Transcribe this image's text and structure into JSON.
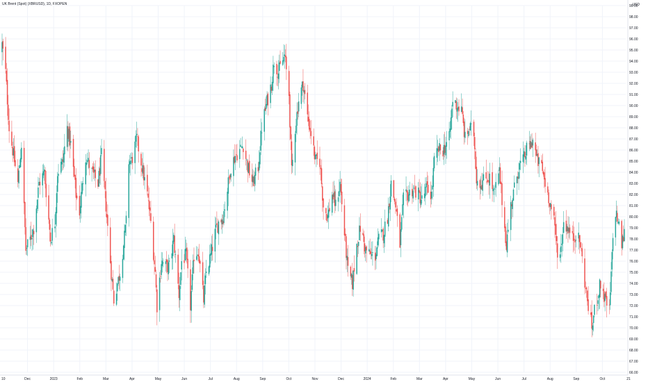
{
  "title": "UK Brent (Spot) (XBRUSD), 1D, FXOPEN",
  "unit": "USD",
  "colors": {
    "up": "#26a69a",
    "down": "#ef5350",
    "grid": "#f0f3fa",
    "text": "#131722",
    "axis": "#e0e3eb"
  },
  "chart_data": {
    "type": "candlestick",
    "title": "UK Brent (Spot) (XBRUSD), 1D, FXOPEN",
    "ylabel": "USD",
    "ylim": [
      66,
      99
    ],
    "yticks": [
      "66.00",
      "67.00",
      "68.00",
      "69.00",
      "70.00",
      "71.00",
      "72.00",
      "73.00",
      "74.00",
      "75.00",
      "76.00",
      "77.00",
      "78.00",
      "79.00",
      "80.00",
      "81.00",
      "82.00",
      "83.00",
      "84.00",
      "85.00",
      "86.00",
      "87.00",
      "88.00",
      "89.00",
      "90.00",
      "91.00",
      "92.00",
      "93.00",
      "94.00",
      "95.00",
      "96.00",
      "97.00",
      "98.00",
      "99.00"
    ],
    "xticks": [
      "10",
      "Dec",
      "2023",
      "Feb",
      "Mar",
      "Apr",
      "May",
      "Jun",
      "Jul",
      "Aug",
      "Sep",
      "Oct",
      "Nov",
      "Dec",
      "2024",
      "Feb",
      "Mar",
      "Apr",
      "May",
      "Jun",
      "Jul",
      "Aug",
      "Sep",
      "Oct",
      "21"
    ],
    "close_path": [
      [
        "2022-11-10",
        95.5
      ],
      [
        "2022-11-14",
        93.0
      ],
      [
        "2022-11-18",
        88.0
      ],
      [
        "2022-11-24",
        85.0
      ],
      [
        "2022-11-28",
        83.0
      ],
      [
        "2022-12-02",
        86.5
      ],
      [
        "2022-12-07",
        77.0
      ],
      [
        "2022-12-12",
        78.0
      ],
      [
        "2022-12-16",
        79.0
      ],
      [
        "2022-12-22",
        83.0
      ],
      [
        "2022-12-28",
        84.0
      ],
      [
        "2023-01-04",
        78.0
      ],
      [
        "2023-01-09",
        79.5
      ],
      [
        "2023-01-12",
        84.0
      ],
      [
        "2023-01-18",
        85.0
      ],
      [
        "2023-01-23",
        88.0
      ],
      [
        "2023-01-27",
        86.5
      ],
      [
        "2023-02-02",
        82.0
      ],
      [
        "2023-02-06",
        80.5
      ],
      [
        "2023-02-13",
        85.5
      ],
      [
        "2023-02-20",
        84.0
      ],
      [
        "2023-02-27",
        83.0
      ],
      [
        "2023-03-03",
        85.5
      ],
      [
        "2023-03-08",
        81.0
      ],
      [
        "2023-03-14",
        75.0
      ],
      [
        "2023-03-17",
        72.5
      ],
      [
        "2023-03-21",
        74.0
      ],
      [
        "2023-03-24",
        75.0
      ],
      [
        "2023-03-28",
        77.5
      ],
      [
        "2023-03-31",
        79.5
      ],
      [
        "2023-04-03",
        85.0
      ],
      [
        "2023-04-06",
        85.0
      ],
      [
        "2023-04-12",
        87.0
      ],
      [
        "2023-04-18",
        84.5
      ],
      [
        "2023-04-24",
        82.0
      ],
      [
        "2023-04-28",
        79.5
      ],
      [
        "2023-05-03",
        75.0
      ],
      [
        "2023-05-05",
        72.0
      ],
      [
        "2023-05-10",
        76.0
      ],
      [
        "2023-05-15",
        75.5
      ],
      [
        "2023-05-19",
        75.5
      ],
      [
        "2023-05-24",
        78.0
      ],
      [
        "2023-05-30",
        73.0
      ],
      [
        "2023-06-02",
        76.0
      ],
      [
        "2023-06-07",
        76.5
      ],
      [
        "2023-06-12",
        72.0
      ],
      [
        "2023-06-16",
        76.5
      ],
      [
        "2023-06-21",
        77.0
      ],
      [
        "2023-06-27",
        72.5
      ],
      [
        "2023-06-30",
        75.0
      ],
      [
        "2023-07-05",
        76.5
      ],
      [
        "2023-07-10",
        78.5
      ],
      [
        "2023-07-14",
        79.5
      ],
      [
        "2023-07-19",
        80.0
      ],
      [
        "2023-07-24",
        82.5
      ],
      [
        "2023-07-28",
        84.5
      ],
      [
        "2023-08-02",
        85.5
      ],
      [
        "2023-08-07",
        86.0
      ],
      [
        "2023-08-11",
        86.5
      ],
      [
        "2023-08-16",
        84.5
      ],
      [
        "2023-08-22",
        83.0
      ],
      [
        "2023-08-28",
        84.5
      ],
      [
        "2023-09-01",
        88.0
      ],
      [
        "2023-09-06",
        90.0
      ],
      [
        "2023-09-12",
        92.0
      ],
      [
        "2023-09-15",
        94.0
      ],
      [
        "2023-09-20",
        93.0
      ],
      [
        "2023-09-27",
        94.5
      ],
      [
        "2023-10-02",
        91.0
      ],
      [
        "2023-10-05",
        84.0
      ],
      [
        "2023-10-09",
        88.0
      ],
      [
        "2023-10-13",
        90.5
      ],
      [
        "2023-10-18",
        92.0
      ],
      [
        "2023-10-23",
        89.0
      ],
      [
        "2023-10-27",
        87.5
      ],
      [
        "2023-11-01",
        85.0
      ],
      [
        "2023-11-06",
        85.0
      ],
      [
        "2023-11-10",
        81.0
      ],
      [
        "2023-11-15",
        80.0
      ],
      [
        "2023-11-20",
        82.0
      ],
      [
        "2023-11-24",
        81.0
      ],
      [
        "2023-11-29",
        83.0
      ],
      [
        "2023-12-04",
        78.5
      ],
      [
        "2023-12-08",
        75.0
      ],
      [
        "2023-12-13",
        74.0
      ],
      [
        "2023-12-18",
        77.5
      ],
      [
        "2023-12-22",
        79.0
      ],
      [
        "2023-12-28",
        77.0
      ],
      [
        "2024-01-03",
        76.5
      ],
      [
        "2024-01-08",
        76.5
      ],
      [
        "2024-01-12",
        78.0
      ],
      [
        "2024-01-17",
        78.5
      ],
      [
        "2024-01-22",
        80.0
      ],
      [
        "2024-01-26",
        83.0
      ],
      [
        "2024-01-31",
        81.0
      ],
      [
        "2024-02-05",
        77.5
      ],
      [
        "2024-02-09",
        81.5
      ],
      [
        "2024-02-14",
        82.0
      ],
      [
        "2024-02-20",
        82.5
      ],
      [
        "2024-02-26",
        82.0
      ],
      [
        "2024-03-01",
        81.5
      ],
      [
        "2024-03-06",
        82.5
      ],
      [
        "2024-03-12",
        82.0
      ],
      [
        "2024-03-15",
        85.0
      ],
      [
        "2024-03-20",
        86.0
      ],
      [
        "2024-03-25",
        86.0
      ],
      [
        "2024-04-01",
        87.0
      ],
      [
        "2024-04-05",
        90.5
      ],
      [
        "2024-04-10",
        90.0
      ],
      [
        "2024-04-15",
        89.5
      ],
      [
        "2024-04-19",
        87.0
      ],
      [
        "2024-04-24",
        88.0
      ],
      [
        "2024-04-29",
        87.5
      ],
      [
        "2024-05-02",
        83.5
      ],
      [
        "2024-05-07",
        83.0
      ],
      [
        "2024-05-13",
        83.5
      ],
      [
        "2024-05-17",
        83.5
      ],
      [
        "2024-05-22",
        82.0
      ],
      [
        "2024-05-28",
        84.0
      ],
      [
        "2024-06-03",
        79.0
      ],
      [
        "2024-06-05",
        77.5
      ],
      [
        "2024-06-10",
        81.0
      ],
      [
        "2024-06-14",
        82.5
      ],
      [
        "2024-06-19",
        84.5
      ],
      [
        "2024-06-24",
        85.0
      ],
      [
        "2024-06-28",
        86.0
      ],
      [
        "2024-07-03",
        86.5
      ],
      [
        "2024-07-05",
        87.0
      ],
      [
        "2024-07-10",
        85.0
      ],
      [
        "2024-07-15",
        84.5
      ],
      [
        "2024-07-19",
        83.0
      ],
      [
        "2024-07-24",
        81.5
      ],
      [
        "2024-07-29",
        79.5
      ],
      [
        "2024-08-02",
        77.0
      ],
      [
        "2024-08-05",
        76.5
      ],
      [
        "2024-08-09",
        79.5
      ],
      [
        "2024-08-14",
        79.0
      ],
      [
        "2024-08-19",
        78.0
      ],
      [
        "2024-08-23",
        78.5
      ],
      [
        "2024-08-28",
        77.5
      ],
      [
        "2024-09-03",
        73.5
      ],
      [
        "2024-09-06",
        72.0
      ],
      [
        "2024-09-10",
        70.0
      ],
      [
        "2024-09-13",
        71.5
      ],
      [
        "2024-09-17",
        73.0
      ],
      [
        "2024-09-20",
        74.0
      ],
      [
        "2024-09-25",
        72.5
      ],
      [
        "2024-09-30",
        71.5
      ],
      [
        "2024-10-04",
        78.0
      ],
      [
        "2024-10-07",
        80.5
      ],
      [
        "2024-10-10",
        79.5
      ],
      [
        "2024-10-14",
        77.5
      ],
      [
        "2024-10-17",
        78.5
      ]
    ]
  }
}
